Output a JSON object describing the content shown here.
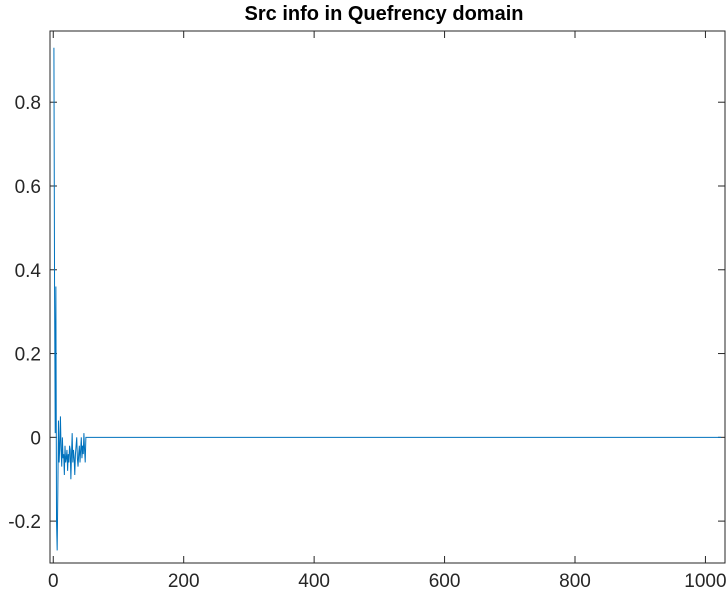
{
  "chart_data": {
    "type": "line",
    "title": "Src info in Quefrency domain",
    "xlabel": "",
    "ylabel": "",
    "xlim": [
      -5,
      1030
    ],
    "ylim": [
      -0.3,
      0.97
    ],
    "xticks": [
      0,
      200,
      400,
      600,
      800,
      1000
    ],
    "xtick_labels": [
      "0",
      "200",
      "400",
      "600",
      "800",
      "1000"
    ],
    "yticks": [
      -0.2,
      0,
      0.2,
      0.4,
      0.6,
      0.8
    ],
    "ytick_labels": [
      "-0.2",
      "0",
      "0.2",
      "0.4",
      "0.6",
      "0.8"
    ],
    "grid": false,
    "box": true,
    "line_color": "#0072BD",
    "axis_color": "#262626",
    "series": [
      {
        "x": [
          1,
          2,
          3,
          4,
          5,
          6,
          7,
          8,
          9,
          10,
          11,
          12,
          13,
          14,
          15,
          16,
          17,
          18,
          19,
          20,
          21,
          22,
          23,
          24,
          25,
          26,
          27,
          28,
          29,
          30,
          31,
          32,
          33,
          34,
          35,
          36,
          37,
          38,
          39,
          40,
          41,
          42,
          43,
          44,
          45,
          46,
          47,
          48,
          49,
          50,
          51,
          52,
          1024
        ],
        "y": [
          0.93,
          0.35,
          0.01,
          0.36,
          -0.2,
          -0.27,
          -0.13,
          0.04,
          -0.06,
          -0.02,
          0.05,
          -0.03,
          -0.07,
          0.0,
          -0.05,
          -0.04,
          -0.09,
          -0.02,
          -0.06,
          -0.05,
          -0.03,
          -0.08,
          -0.04,
          -0.06,
          -0.02,
          -0.03,
          -0.1,
          -0.04,
          0.01,
          -0.06,
          -0.03,
          -0.05,
          -0.09,
          -0.04,
          -0.02,
          0.0,
          -0.05,
          -0.07,
          -0.04,
          -0.02,
          -0.06,
          -0.03,
          0.0,
          -0.05,
          -0.02,
          -0.04,
          0.01,
          -0.03,
          -0.06,
          0.0,
          0.0,
          0.0,
          0.0
        ]
      }
    ]
  }
}
